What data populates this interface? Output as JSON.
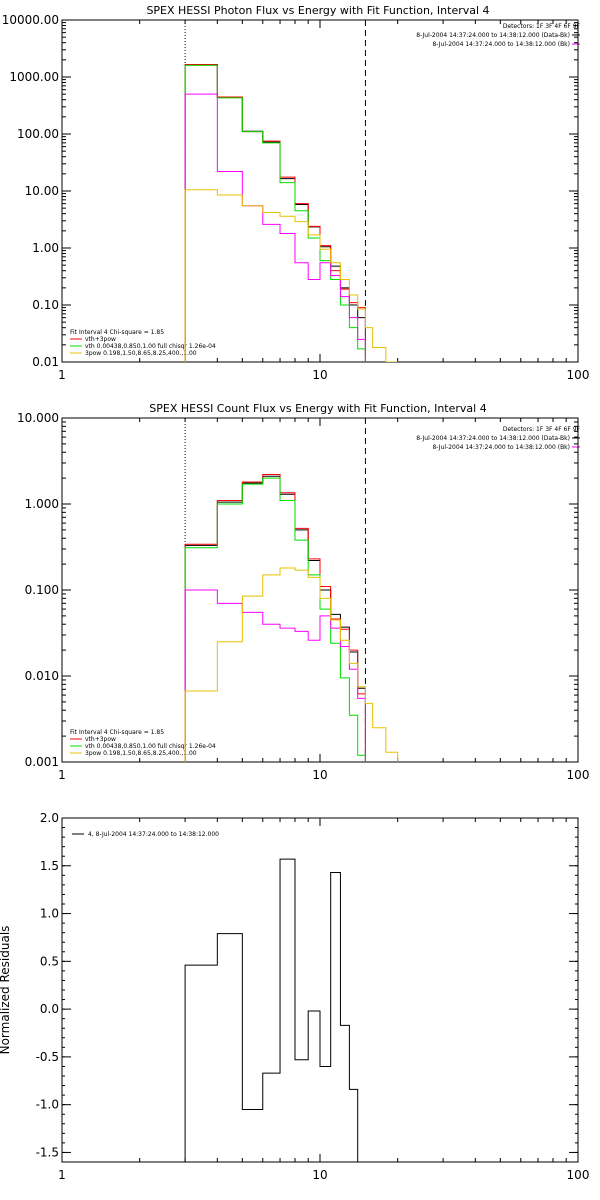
{
  "chart_data": [
    {
      "type": "line",
      "title": "SPEX HESSI Photon Flux vs Energy with Fit Function, Interval 4",
      "xscale": "log",
      "yscale": "log",
      "xlim": [
        1,
        100
      ],
      "ylim": [
        0.01,
        10000
      ],
      "xticks": [
        1,
        10,
        100
      ],
      "xtick_labels": [
        "1",
        "10",
        "100"
      ],
      "yticks": [
        0.01,
        0.1,
        1,
        10,
        100,
        1000,
        10000
      ],
      "ytick_labels": [
        "0.01",
        "0.10",
        "1.00",
        "10.00",
        "100.00",
        "1000.00",
        "10000.00"
      ],
      "vlines": [
        {
          "x": 3,
          "style": "dotted"
        },
        {
          "x": 15,
          "style": "dashed"
        }
      ],
      "header_text": [
        "Detectors: 1F 3F 4F 6F 9F",
        "8-Jul-2004 14:37:24.000 to 14:38:12.000 (Data-Bk)",
        "8-Jul-2004 14:37:24.000 to 14:38:12.000 (Bk)"
      ],
      "fit_text": [
        "Fit Interval  4   Chi-square = 1.85",
        "vth+3pow",
        "vth 0.00438,0.850,1.00   full chisqr 1.26e-04",
        "3pow 0.198,1.50,8.65,8.25,400.,1.00"
      ],
      "bin_edges": [
        3,
        4,
        5,
        6,
        7,
        8,
        9,
        10,
        11,
        12,
        13,
        14,
        15,
        16,
        18,
        20
      ],
      "series": [
        {
          "color": "#000000",
          "values": [
            1650,
            440,
            112,
            72,
            16.5,
            5.8,
            2.35,
            1.05,
            0.48,
            0.2,
            0.1,
            0.06,
            null,
            null,
            null
          ]
        },
        {
          "color": "#ff0000",
          "values": [
            1650,
            445,
            110,
            75,
            17.5,
            6,
            2.4,
            1.1,
            0.4,
            0.19,
            0.11,
            0.09,
            null,
            null,
            null
          ]
        },
        {
          "color": "#00dd00",
          "values": [
            1600,
            430,
            110,
            70,
            14,
            4.5,
            1.5,
            0.6,
            0.28,
            0.1,
            0.04,
            0.017,
            null,
            null,
            null
          ]
        },
        {
          "color": "#ff00ff",
          "values": [
            500,
            22,
            5.5,
            2.6,
            1.8,
            0.55,
            0.28,
            0.55,
            0.33,
            0.14,
            0.06,
            0.025,
            null,
            null,
            null
          ]
        },
        {
          "color": "#e8c000",
          "values": [
            10.5,
            8.5,
            5.5,
            4.2,
            3.6,
            2.9,
            1.7,
            0.95,
            0.55,
            0.28,
            0.15,
            0.085,
            0.04,
            0.018,
            0.009
          ]
        }
      ]
    },
    {
      "type": "line",
      "title": "SPEX HESSI Count Flux vs Energy with Fit Function, Interval 4",
      "xscale": "log",
      "yscale": "log",
      "xlim": [
        1,
        100
      ],
      "ylim": [
        0.001,
        10
      ],
      "xticks": [
        1,
        10,
        100
      ],
      "xtick_labels": [
        "1",
        "10",
        "100"
      ],
      "yticks": [
        0.001,
        0.01,
        0.1,
        1,
        10
      ],
      "ytick_labels": [
        "0.001",
        "0.010",
        "0.100",
        "1.000",
        "10.000"
      ],
      "vlines": [
        {
          "x": 3,
          "style": "dotted"
        },
        {
          "x": 15,
          "style": "dashed"
        }
      ],
      "header_text": [
        "Detectors: 1F 3F 4F 6F 9F",
        "8-Jul-2004 14:37:24.000 to 14:38:12.000 (Data-Bk)",
        "8-Jul-2004 14:37:24.000 to 14:38:12.000 (Bk)"
      ],
      "fit_text": [
        "Fit Interval  4   Chi-square = 1.85",
        "vth+3pow",
        "vth 0.00438,0.850,1.00   full chisqr 1.26e-04",
        "3pow 0.198,1.50,8.65,8.25,400.,1.00"
      ],
      "bin_edges": [
        3,
        4,
        5,
        6,
        7,
        8,
        9,
        10,
        11,
        12,
        13,
        14,
        15,
        16,
        18,
        20
      ],
      "series": [
        {
          "color": "#000000",
          "values": [
            0.33,
            1.05,
            1.75,
            2.1,
            1.3,
            0.5,
            0.22,
            0.1,
            0.052,
            0.037,
            0.019,
            0.0072,
            null,
            null,
            null
          ]
        },
        {
          "color": "#ff0000",
          "values": [
            0.34,
            1.1,
            1.8,
            2.2,
            1.35,
            0.52,
            0.23,
            0.11,
            0.046,
            0.035,
            0.02,
            0.0062,
            null,
            null,
            null
          ]
        },
        {
          "color": "#00dd00",
          "values": [
            0.31,
            1.0,
            1.7,
            2.0,
            1.1,
            0.38,
            0.15,
            0.06,
            0.024,
            0.0095,
            0.0035,
            0.0012,
            null,
            null,
            null
          ]
        },
        {
          "color": "#ff00ff",
          "values": [
            0.1,
            0.07,
            0.055,
            0.04,
            0.036,
            0.033,
            0.026,
            0.05,
            0.036,
            0.022,
            0.012,
            0.0055,
            null,
            null,
            null
          ]
        },
        {
          "color": "#e8c000",
          "values": [
            0.0067,
            0.025,
            0.085,
            0.15,
            0.18,
            0.17,
            0.14,
            0.08,
            0.045,
            0.026,
            0.014,
            0.0075,
            0.0048,
            0.0025,
            0.0013
          ]
        }
      ]
    },
    {
      "type": "line",
      "title": "",
      "xscale": "log",
      "yscale": "linear",
      "ylabel": "Normalized Residuals",
      "xlim": [
        1,
        100
      ],
      "ylim": [
        -1.6,
        2.0
      ],
      "xticks": [
        1,
        10,
        100
      ],
      "xtick_labels": [
        "1",
        "10",
        "100"
      ],
      "yticks": [
        -1.5,
        -1.0,
        -0.5,
        0.0,
        0.5,
        1.0,
        1.5,
        2.0
      ],
      "ytick_labels": [
        "-1.5",
        "-1.0",
        "-0.5",
        "0.0",
        "0.5",
        "1.0",
        "1.5",
        "2.0"
      ],
      "legend": [
        "4,  8-Jul-2004 14:37:24.000 to 14:38:12.000"
      ],
      "bin_edges": [
        3,
        4,
        5,
        6,
        7,
        8,
        9,
        10,
        11,
        12,
        13,
        14,
        15
      ],
      "series": [
        {
          "color": "#000000",
          "values": [
            0.46,
            0.79,
            -1.05,
            -0.67,
            1.57,
            -0.53,
            -0.02,
            -0.6,
            1.43,
            -0.17,
            -0.84,
            -1.6
          ]
        }
      ]
    }
  ]
}
